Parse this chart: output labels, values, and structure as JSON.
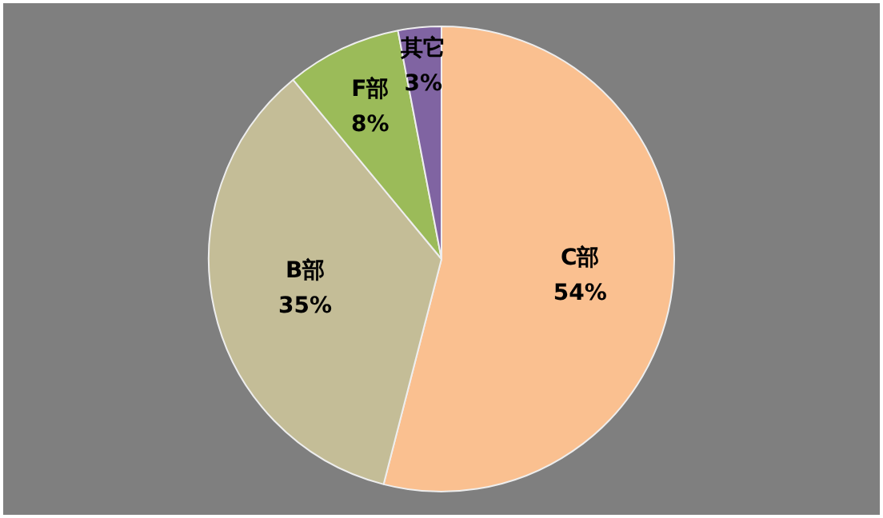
{
  "chart_data": {
    "type": "pie",
    "categories": [
      "C部",
      "B部",
      "F部",
      "其它"
    ],
    "values": [
      54,
      35,
      8,
      3
    ],
    "colors": [
      "#fac090",
      "#c4bd97",
      "#9bbb59",
      "#8064a2"
    ],
    "value_labels": [
      "54%",
      "35%",
      "8%",
      "3%"
    ],
    "legend": false
  }
}
